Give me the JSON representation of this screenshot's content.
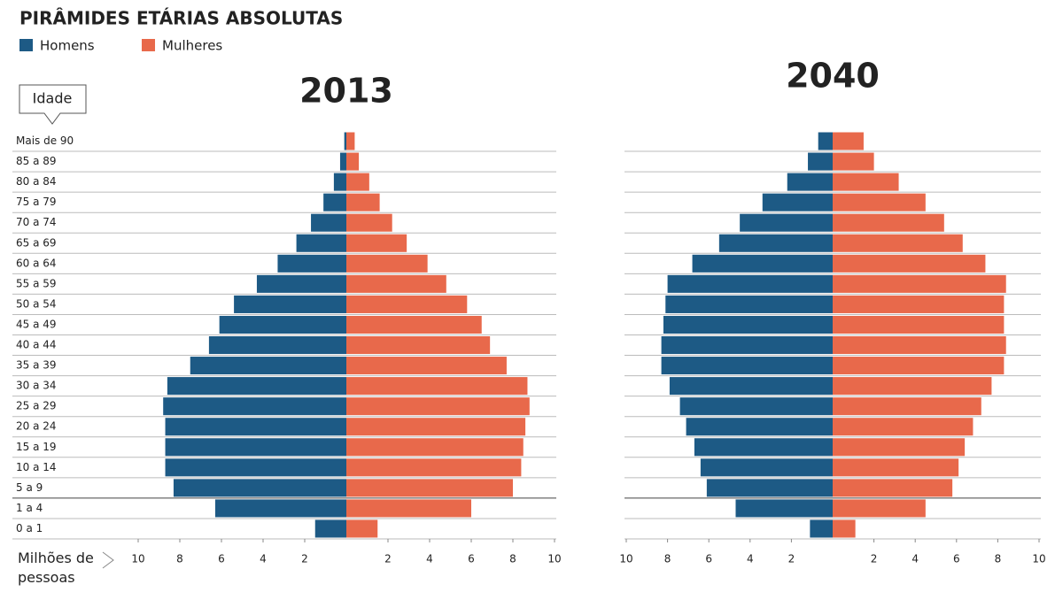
{
  "chart_data": [
    {
      "type": "pyramid",
      "title": "PIRÂMIDES ETÁRIAS ABSOLUTAS",
      "subtitle": "2013",
      "y_label": "Idade",
      "x_label": "Milhões de pessoas",
      "categories": [
        "Mais de 90",
        "85 a 89",
        "80 a 84",
        "75 a 79",
        "70 a 74",
        "65 a 69",
        "60 a 64",
        "55 a 59",
        "50 a 54",
        "45 a 49",
        "40 a 44",
        "35 a 39",
        "30 a 34",
        "25 a 29",
        "20 a 24",
        "15 a 19",
        "10 a 14",
        "5 a 9",
        "1 a 4",
        "0 a 1"
      ],
      "series": [
        {
          "name": "Homens",
          "color": "#1d5a85",
          "side": "left",
          "values": [
            0.1,
            0.3,
            0.6,
            1.1,
            1.7,
            2.4,
            3.3,
            4.3,
            5.4,
            6.1,
            6.6,
            7.5,
            8.6,
            8.8,
            8.7,
            8.7,
            8.7,
            8.3,
            6.3,
            1.5
          ]
        },
        {
          "name": "Mulheres",
          "color": "#e8694b",
          "side": "right",
          "values": [
            0.4,
            0.6,
            1.1,
            1.6,
            2.2,
            2.9,
            3.9,
            4.8,
            5.8,
            6.5,
            6.9,
            7.7,
            8.7,
            8.8,
            8.6,
            8.5,
            8.4,
            8.0,
            6.0,
            1.5
          ]
        }
      ],
      "xlim": [
        -10,
        10
      ],
      "xticks": [
        {
          "value": -10,
          "label": "10"
        },
        {
          "value": -8,
          "label": "8"
        },
        {
          "value": -6,
          "label": "6"
        },
        {
          "value": -4,
          "label": "4"
        },
        {
          "value": -2,
          "label": "2"
        },
        2,
        4,
        6,
        8,
        10
      ]
    },
    {
      "type": "pyramid",
      "subtitle": "2040",
      "series": [
        {
          "color": "#1d5a85",
          "side": "left",
          "values": [
            0.7,
            1.2,
            2.2,
            3.4,
            4.5,
            5.5,
            6.8,
            8.0,
            8.1,
            8.2,
            8.3,
            8.3,
            7.9,
            7.4,
            7.1,
            6.7,
            6.4,
            6.1,
            4.7,
            1.1
          ]
        },
        {
          "color": "#e8694b",
          "side": "right",
          "values": [
            1.5,
            2.0,
            3.2,
            4.5,
            5.4,
            6.3,
            7.4,
            8.4,
            8.3,
            8.3,
            8.4,
            8.3,
            7.7,
            7.2,
            6.8,
            6.4,
            6.1,
            5.8,
            4.5,
            1.1
          ]
        }
      ],
      "xlim": [
        -10,
        10
      ],
      "xticks": [
        {
          "value": -10,
          "label": "10"
        },
        {
          "value": -8,
          "label": "8"
        },
        {
          "value": -6,
          "label": "6"
        },
        {
          "value": -4,
          "label": "4"
        },
        {
          "value": -2,
          "label": "2"
        },
        2,
        4,
        6,
        8,
        10
      ]
    }
  ]
}
